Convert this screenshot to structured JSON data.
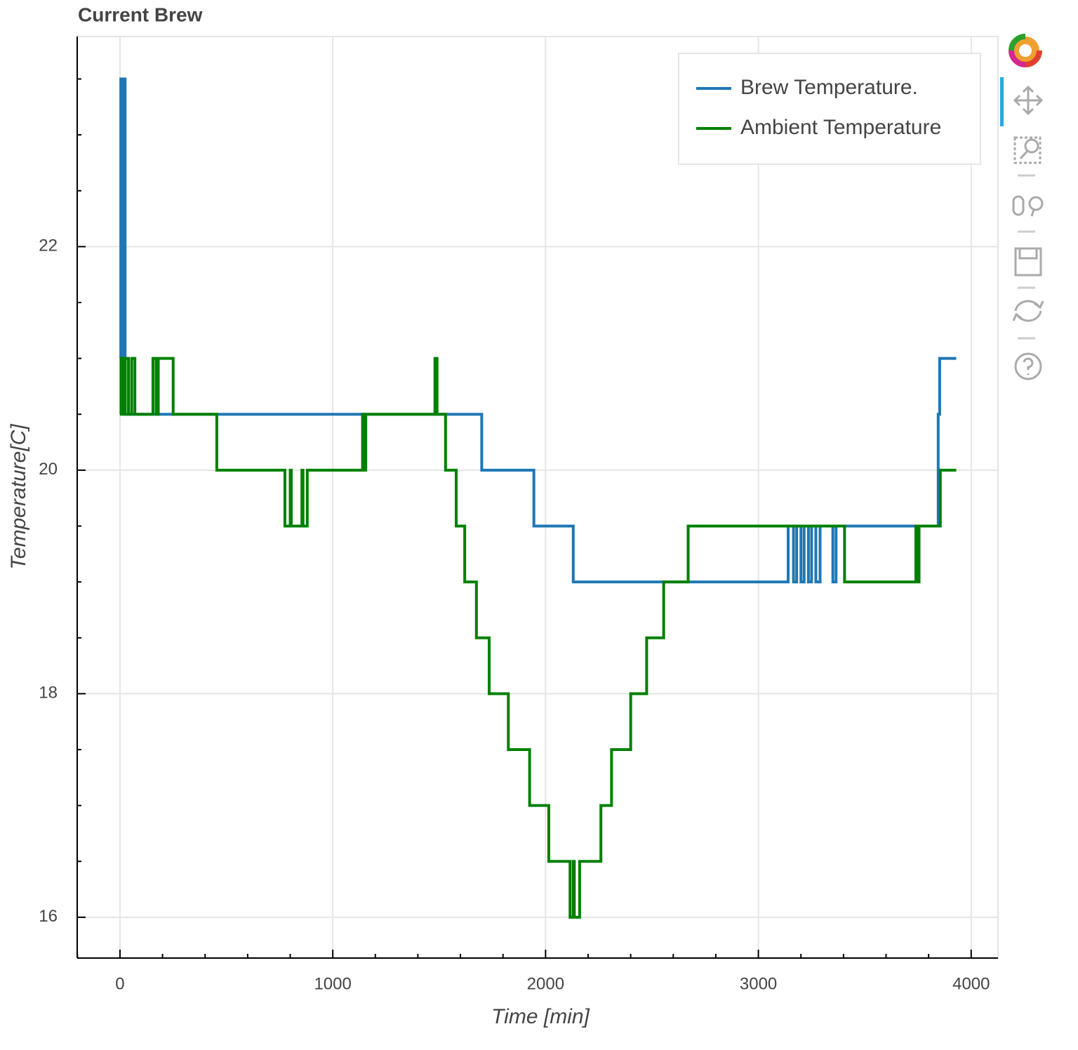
{
  "chart_data": {
    "type": "line",
    "title": "Current Brew",
    "x_label": "Time [min]",
    "y_label": "Temperature[C]",
    "series": [
      {
        "name": "Brew Temperature.",
        "color": "#1f77b4",
        "x": [
          0,
          4,
          4,
          12,
          12,
          18,
          18,
          24,
          24,
          1700,
          1700,
          1945,
          1945,
          2130,
          2130,
          3140,
          3140,
          3165,
          3165,
          3180,
          3180,
          3200,
          3200,
          3215,
          3215,
          3235,
          3235,
          3250,
          3250,
          3270,
          3270,
          3290,
          3290,
          3350,
          3350,
          3365,
          3365,
          3845,
          3845,
          3852,
          3852,
          3930
        ],
        "values": [
          21,
          21,
          23.5,
          23.5,
          21,
          21,
          23.5,
          23.5,
          20.5,
          20.5,
          20,
          20,
          19.5,
          19.5,
          19,
          19,
          19.5,
          19.5,
          19,
          19,
          19.5,
          19.5,
          19,
          19,
          19.5,
          19.5,
          19,
          19,
          19.5,
          19.5,
          19,
          19,
          19.5,
          19.5,
          19,
          19,
          19.5,
          19.5,
          20.5,
          20.5,
          21,
          21
        ]
      },
      {
        "name": "Ambient Temperature",
        "color": "#008000",
        "x": [
          0,
          5,
          5,
          15,
          15,
          25,
          25,
          40,
          40,
          55,
          55,
          70,
          70,
          155,
          155,
          170,
          170,
          180,
          180,
          250,
          250,
          455,
          455,
          775,
          775,
          800,
          800,
          805,
          805,
          855,
          855,
          860,
          860,
          880,
          880,
          1140,
          1140,
          1145,
          1145,
          1155,
          1155,
          1480,
          1480,
          1490,
          1490,
          1530,
          1530,
          1580,
          1580,
          1620,
          1620,
          1675,
          1675,
          1735,
          1735,
          1825,
          1825,
          1925,
          1925,
          2015,
          2015,
          2115,
          2115,
          2130,
          2130,
          2135,
          2135,
          2160,
          2160,
          2260,
          2260,
          2310,
          2310,
          2400,
          2400,
          2475,
          2475,
          2555,
          2555,
          2670,
          2670,
          3405,
          3405,
          3740,
          3740,
          3745,
          3745,
          3755,
          3755,
          3855,
          3855,
          3930
        ],
        "values": [
          20.5,
          20.5,
          21,
          21,
          20.5,
          20.5,
          21,
          21,
          20.5,
          20.5,
          21,
          21,
          20.5,
          20.5,
          21,
          21,
          20.5,
          20.5,
          21,
          21,
          20.5,
          20.5,
          20,
          20,
          19.5,
          19.5,
          20,
          20,
          19.5,
          19.5,
          20,
          20,
          19.5,
          19.5,
          20,
          20,
          20.5,
          20.5,
          20,
          20,
          20.5,
          20.5,
          21,
          21,
          20.5,
          20.5,
          20,
          20,
          19.5,
          19.5,
          19,
          19,
          18.5,
          18.5,
          18,
          18,
          17.5,
          17.5,
          17,
          17,
          16.5,
          16.5,
          16,
          16,
          16.5,
          16.5,
          16,
          16,
          16.5,
          16.5,
          17,
          17,
          17.5,
          17.5,
          18,
          18,
          18.5,
          18.5,
          19,
          19,
          19.5,
          19.5,
          19,
          19,
          19.5,
          19.5,
          19,
          19,
          19.5,
          19.5,
          20,
          20
        ]
      }
    ],
    "xlim": [
      -201,
      4126
    ],
    "ylim": [
      15.635,
      23.88
    ],
    "xticks": [
      0,
      1000,
      2000,
      3000,
      4000
    ],
    "yticks": [
      16,
      18,
      20,
      22
    ],
    "xminor_ticks": [
      -200,
      200,
      400,
      600,
      800,
      1200,
      1400,
      1600,
      1800,
      2200,
      2400,
      2600,
      2800,
      3200,
      3400,
      3600,
      3800
    ],
    "yminor_ticks": [
      16.5,
      17,
      17.5,
      18.5,
      19,
      19.5,
      20.5,
      21,
      21.5,
      22.5,
      23,
      23.5
    ],
    "grid": true,
    "legend": "top-right"
  }
}
